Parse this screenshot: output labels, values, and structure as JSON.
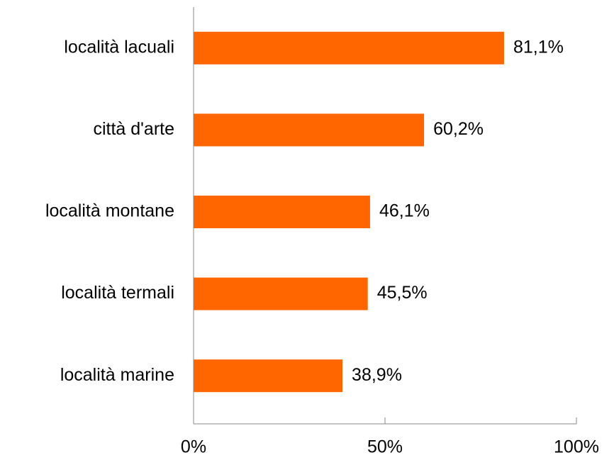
{
  "chart_data": {
    "type": "bar",
    "orientation": "horizontal",
    "categories": [
      "località lacuali",
      "città d'arte",
      "località montane",
      "località termali",
      "località marine"
    ],
    "values": [
      81.1,
      60.2,
      46.1,
      45.5,
      38.9
    ],
    "value_labels": [
      "81,1%",
      "60,2%",
      "46,1%",
      "45,5%",
      "38,9%"
    ],
    "color": "#ff6600",
    "xlim": [
      0,
      100
    ],
    "xticks": [
      {
        "value": 0,
        "label": "0%"
      },
      {
        "value": 50,
        "label": "50%"
      },
      {
        "value": 100,
        "label": "100%"
      }
    ],
    "grid": false
  }
}
